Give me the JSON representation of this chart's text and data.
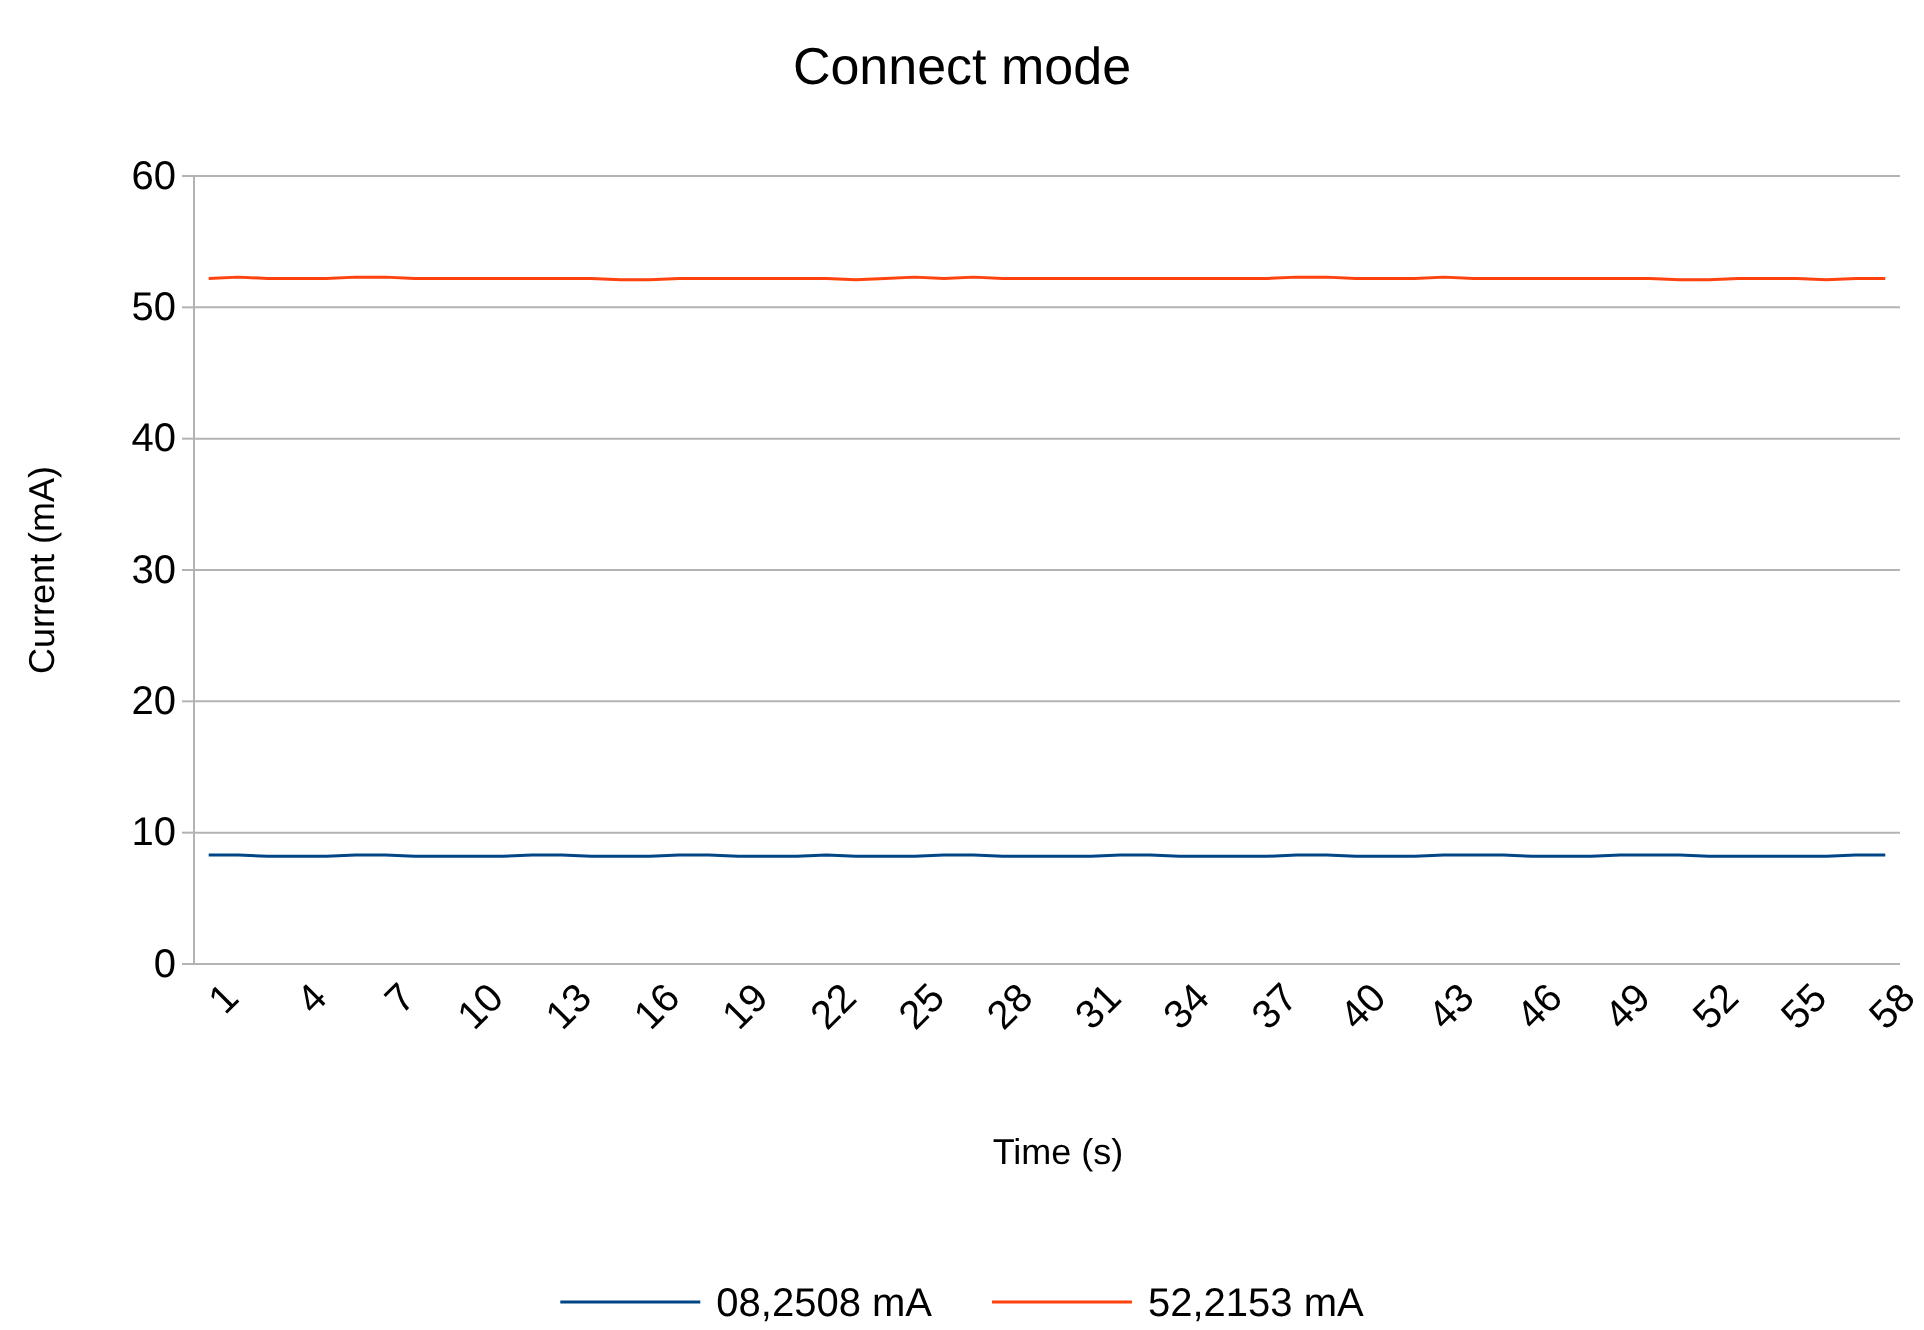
{
  "chart_data": {
    "type": "line",
    "title": "Connect mode",
    "xlabel": "Time (s)",
    "ylabel": "Current (mA)",
    "categories": [
      "1",
      null,
      null,
      "4",
      null,
      null,
      "7",
      null,
      null,
      "10",
      null,
      null,
      "13",
      null,
      null,
      "16",
      null,
      null,
      "19",
      null,
      null,
      "22",
      null,
      null,
      "25",
      null,
      null,
      "28",
      null,
      null,
      "31",
      null,
      null,
      "34",
      null,
      null,
      "37",
      null,
      null,
      "40",
      null,
      null,
      "43",
      null,
      null,
      "46",
      null,
      null,
      "49",
      null,
      null,
      "52",
      null,
      null,
      "55",
      null,
      null,
      "58"
    ],
    "series": [
      {
        "name": "08,2508 mA",
        "color": "#004586",
        "values": [
          8.3,
          8.3,
          8.2,
          8.2,
          8.2,
          8.3,
          8.3,
          8.2,
          8.2,
          8.2,
          8.2,
          8.3,
          8.3,
          8.2,
          8.2,
          8.2,
          8.3,
          8.3,
          8.2,
          8.2,
          8.2,
          8.3,
          8.2,
          8.2,
          8.2,
          8.3,
          8.3,
          8.2,
          8.2,
          8.2,
          8.2,
          8.3,
          8.3,
          8.2,
          8.2,
          8.2,
          8.2,
          8.3,
          8.3,
          8.2,
          8.2,
          8.2,
          8.3,
          8.3,
          8.3,
          8.2,
          8.2,
          8.2,
          8.3,
          8.3,
          8.3,
          8.2,
          8.2,
          8.2,
          8.2,
          8.2,
          8.3,
          8.3
        ]
      },
      {
        "name": "52,2153 mA",
        "color": "#ff420e",
        "values": [
          52.2,
          52.3,
          52.2,
          52.2,
          52.2,
          52.3,
          52.3,
          52.2,
          52.2,
          52.2,
          52.2,
          52.2,
          52.2,
          52.2,
          52.1,
          52.1,
          52.2,
          52.2,
          52.2,
          52.2,
          52.2,
          52.2,
          52.1,
          52.2,
          52.3,
          52.2,
          52.3,
          52.2,
          52.2,
          52.2,
          52.2,
          52.2,
          52.2,
          52.2,
          52.2,
          52.2,
          52.2,
          52.3,
          52.3,
          52.2,
          52.2,
          52.2,
          52.3,
          52.2,
          52.2,
          52.2,
          52.2,
          52.2,
          52.2,
          52.2,
          52.1,
          52.1,
          52.2,
          52.2,
          52.2,
          52.1,
          52.2,
          52.2
        ]
      }
    ],
    "ylim": [
      0,
      60
    ],
    "yticks": [
      0,
      10,
      20,
      30,
      40,
      50,
      60
    ],
    "grid": "y",
    "legend": "bottom",
    "marker": "none",
    "line_style": "solid"
  }
}
